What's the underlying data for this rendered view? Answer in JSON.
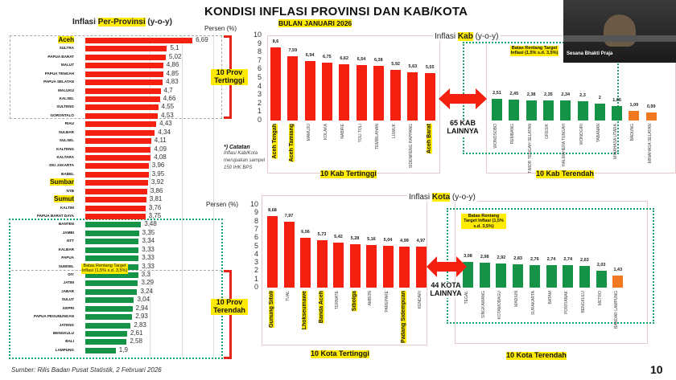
{
  "header": {
    "title": "KONDISI INFLASI PROVINSI DAN KAB/KOTA",
    "subtitle": "BULAN JANUARI 2026"
  },
  "source": "Sumber: Rilis Badan Pusat Statistik, 2 Februari 2026",
  "page_number": "10",
  "webcam": {
    "name": "Sesana Bhakti Praja"
  },
  "catatan": {
    "title": "*) Catatan",
    "text": "Inflasi Kab/Kota merupakan sampel 150 IHK BPS"
  },
  "colors": {
    "high": "#f5200f",
    "low": "#159447",
    "below": "#f07820",
    "highlight": "#ffeb00"
  },
  "chart_data": [
    {
      "type": "bar",
      "orientation": "horizontal",
      "title_pre": "Inflasi ",
      "title_hl": "Per-Provinsi",
      "title_post": " (y-o-y)",
      "unit": "Persen (%)",
      "categories": [
        "Aceh",
        "SULTRA",
        "PAPUA BARAT",
        "MALUT",
        "PAPUA TENGAH",
        "PAPUA SELATAN",
        "MALUKU",
        "KALSEL",
        "SULTENG",
        "GORONTALO",
        "RIAU",
        "SULBAR",
        "SULSEL",
        "KALTENG",
        "KALTARA",
        "DKI JAKARTA",
        "BABEL",
        "Sumbar",
        "NTB",
        "Sumut",
        "KALTIM",
        "PAPUA BARAT DAYA",
        "BANTEN",
        "JAMBI",
        "NTT",
        "KALBAR",
        "PAPUA",
        "SUMSEL",
        "DIY",
        "JATIM",
        "JABAR",
        "SULUT",
        "KEPRI",
        "PAPUA PEGUNUNGAN",
        "JATENG",
        "BENGKULU",
        "BALI",
        "LAMPUNG"
      ],
      "values": [
        6.69,
        5.1,
        5.02,
        4.86,
        4.85,
        4.83,
        4.7,
        4.66,
        4.55,
        4.53,
        4.43,
        4.34,
        4.11,
        4.09,
        4.08,
        3.96,
        3.95,
        3.92,
        3.86,
        3.81,
        3.76,
        3.75,
        3.48,
        3.35,
        3.34,
        3.33,
        3.33,
        3.33,
        3.3,
        3.29,
        3.24,
        3.04,
        2.94,
        2.93,
        2.83,
        2.61,
        2.58,
        1.9
      ],
      "value_labels": [
        "6,69",
        "5,1",
        "5,02",
        "4,86",
        "4,85",
        "4,83",
        "4,7",
        "4,66",
        "4,55",
        "4,53",
        "4,43",
        "4,34",
        "4,11",
        "4,09",
        "4,08",
        "3,96",
        "3,95",
        "3,92",
        "3,86",
        "3,81",
        "3,76",
        "3,75",
        "3,48",
        "3,35",
        "3,34",
        "3,33",
        "3,33",
        "3,33",
        "3,3",
        "3,29",
        "3,24",
        "3,04",
        "2,94",
        "2,93",
        "2,83",
        "2,61",
        "2,58",
        "1,9"
      ],
      "highlighted": [
        "Aceh",
        "Sumbar",
        "Sumut"
      ],
      "top_label": "10 Prov Tertinggi",
      "bottom_label": "10 Prov Terendah",
      "target_note": "Batas Rentang Target Inflasi (1,5% s.d. 3,5%)"
    },
    {
      "type": "bar",
      "title_pre": "Inflasi ",
      "title_hl": "Kab",
      "title_post": " (y-o-y)",
      "ylim": [
        0,
        10
      ],
      "yticks": [
        "0",
        "1",
        "2",
        "3",
        "4",
        "5",
        "6",
        "7",
        "8",
        "9",
        "10"
      ],
      "high": {
        "label": "10 Kab Tertinggi",
        "categories": [
          "Aceh Tengah",
          "Aceh Tamiang",
          "MAMUJU",
          "KOLAKA",
          "NABIRE",
          "TOLI TOLI",
          "TEMBILAHAN",
          "LUWUK",
          "SIDENRENG RAPPANG",
          "Aceh Barat"
        ],
        "values": [
          8.6,
          7.59,
          6.94,
          6.75,
          6.62,
          6.54,
          6.38,
          5.92,
          5.63,
          5.55
        ],
        "value_labels": [
          "8,6",
          "7,59",
          "6,94",
          "6,75",
          "6,62",
          "6,54",
          "6,38",
          "5,92",
          "5,63",
          "5,55"
        ],
        "highlighted": [
          "Aceh Tengah",
          "Aceh Tamiang",
          "Aceh Barat"
        ]
      },
      "middle": "65 KAB LAINNYA",
      "low": {
        "label": "10 Kab Terendah",
        "categories": [
          "WONOSOBO",
          "REMBANG",
          "TIMOR TENGAH SELATAN",
          "GRESIK",
          "HALMAHERA TENGAH",
          "WONOGIRI",
          "TABANAN",
          "MINAHASA UTARA",
          "BADUNG",
          "MINAHASA SELATAN"
        ],
        "values": [
          2.51,
          2.45,
          2.38,
          2.35,
          2.34,
          2.3,
          2,
          1.66,
          1.09,
          0.99
        ],
        "value_labels": [
          "2,51",
          "2,45",
          "2,38",
          "2,35",
          "2,34",
          "2,3",
          "2",
          "1,66",
          "1,09",
          "0,99"
        ],
        "below_target": [
          "BADUNG",
          "MINAHASA SELATAN"
        ]
      },
      "target_note": "Batas Rentang Target Inflasi (1,5% s.d. 3,5%)"
    },
    {
      "type": "bar",
      "title_pre": "Inflasi ",
      "title_hl": "Kota",
      "title_post": " (y-o-y)",
      "unit": "Persen (%)",
      "ylim": [
        0,
        10
      ],
      "yticks": [
        "0",
        "1",
        "2",
        "3",
        "4",
        "5",
        "6",
        "7",
        "8",
        "9",
        "10"
      ],
      "high": {
        "label": "10 Kota Tertinggi",
        "categories": [
          "Gunung Sitoli",
          "TUAL",
          "Lhokseumawe",
          "Banda Aceh",
          "TERNATE",
          "Sibolga",
          "AMBON",
          "PAREPARE",
          "Padang Sidempuan",
          "KENDARI"
        ],
        "values": [
          8.68,
          7.97,
          6.06,
          5.73,
          5.42,
          5.28,
          5.16,
          5.04,
          4.99,
          4.97
        ],
        "value_labels": [
          "8,68",
          "7,97",
          "6,06",
          "5,73",
          "5,42",
          "5,28",
          "5,16",
          "5,04",
          "4,99",
          "4,97"
        ],
        "highlighted": [
          "Gunung Sitoli",
          "Lhokseumawe",
          "Banda Aceh",
          "Sibolga",
          "Padang Sidempuan"
        ]
      },
      "middle": "44 KOTA LAINNYA",
      "low": {
        "label": "10 Kota Terendah",
        "categories": [
          "TEGAL",
          "SINGKAWANG",
          "KOTAMOBAGU",
          "MADIUN",
          "SURAKARTA",
          "BATAM",
          "PONTIANAK",
          "BENGKULU",
          "METRO",
          "BANDAR LAMPUNG"
        ],
        "values": [
          3.08,
          2.98,
          2.92,
          2.83,
          2.76,
          2.74,
          2.74,
          2.63,
          2.03,
          1.43
        ],
        "value_labels": [
          "3,08",
          "2,98",
          "2,92",
          "2,83",
          "2,76",
          "2,74",
          "2,74",
          "2,63",
          "2,03",
          "1,43"
        ],
        "below_target": [
          "BANDAR LAMPUNG"
        ]
      },
      "target_note": "Batas Rentang Target Inflasi (1,5% s.d. 3,5%)"
    }
  ]
}
